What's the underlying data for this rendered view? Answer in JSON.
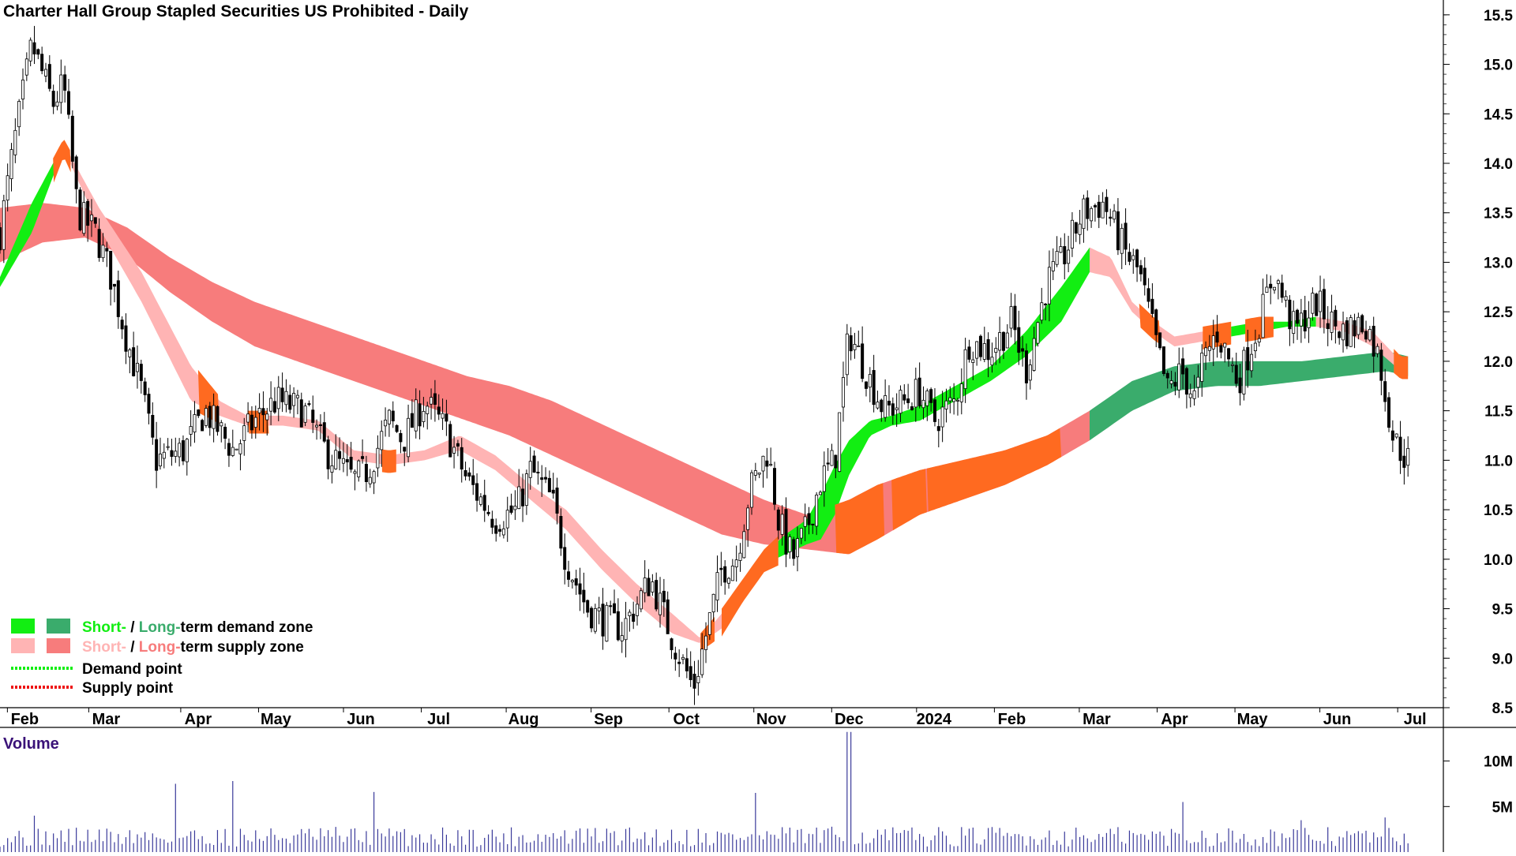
{
  "chart_data": {
    "type": "candlestick",
    "title": "Charter Hall Group Stapled Securities US Prohibited - Daily",
    "price_axis": {
      "ticks": [
        "15.5",
        "15.0",
        "14.5",
        "14.0",
        "13.5",
        "13.0",
        "12.5",
        "12.0",
        "11.5",
        "11.0",
        "10.5",
        "10.0",
        "9.5",
        "9.0",
        "8.5"
      ],
      "range": [
        8.5,
        15.65
      ]
    },
    "x_axis": {
      "labels": [
        "Feb",
        "Mar",
        "Apr",
        "May",
        "Jun",
        "Jul",
        "Aug",
        "Sep",
        "Oct",
        "Nov",
        "Dec",
        "2024",
        "Feb",
        "Mar",
        "Apr",
        "May",
        "Jun",
        "Jul"
      ],
      "label_positions": [
        0.035,
        0.15,
        0.28,
        0.39,
        0.51,
        0.62,
        0.74,
        0.86,
        0.97,
        1.09,
        1.2,
        1.32,
        1.43,
        1.55,
        1.66,
        1.77,
        1.89,
        2.0
      ]
    },
    "price_anchors": {
      "x": [
        0.0,
        0.02,
        0.045,
        0.075,
        0.09,
        0.11,
        0.135,
        0.155,
        0.18,
        0.2,
        0.22,
        0.26,
        0.29,
        0.31,
        0.33,
        0.36,
        0.39,
        0.43,
        0.46,
        0.5,
        0.52,
        0.55,
        0.57,
        0.6,
        0.63,
        0.66,
        0.7,
        0.73,
        0.75,
        0.78,
        0.8,
        0.83,
        0.85,
        0.88,
        0.92,
        0.95,
        0.98,
        1.0,
        1.02,
        1.04,
        1.06,
        1.085,
        1.1,
        1.12,
        1.14,
        1.16,
        1.18,
        1.2,
        1.23,
        1.25,
        1.28,
        1.3,
        1.32,
        1.35,
        1.37,
        1.4,
        1.43,
        1.45,
        1.48,
        1.5,
        1.53,
        1.56,
        1.59,
        1.61,
        1.63,
        1.65,
        1.67,
        1.69,
        1.7,
        1.72,
        1.75,
        1.78,
        1.8,
        1.83,
        1.86,
        1.88,
        1.9,
        1.93,
        1.95,
        1.97,
        1.99
      ],
      "close": [
        13.3,
        14.2,
        15.2,
        14.6,
        14.8,
        13.5,
        13.3,
        12.9,
        12.2,
        11.7,
        11.0,
        11.1,
        11.5,
        11.3,
        11.1,
        11.4,
        11.6,
        11.5,
        11.1,
        10.8,
        10.9,
        11.4,
        11.2,
        11.6,
        11.3,
        10.8,
        10.4,
        10.5,
        10.9,
        10.6,
        10.0,
        9.5,
        9.4,
        9.3,
        9.8,
        9.2,
        8.7,
        9.3,
        9.9,
        10.0,
        10.7,
        11.1,
        10.4,
        10.0,
        10.3,
        10.8,
        11.0,
        12.3,
        11.8,
        11.5,
        11.6,
        11.7,
        11.4,
        11.6,
        12.2,
        12.1,
        12.4,
        11.9,
        12.8,
        13.0,
        13.5,
        13.6,
        13.1,
        12.9,
        12.3,
        11.7,
        11.9,
        11.6,
        12.0,
        12.3,
        11.8,
        12.4,
        12.9,
        12.3,
        12.6,
        12.4,
        12.3,
        12.4,
        12.0,
        11.2,
        11.0
      ]
    },
    "zones": {
      "short_term": {
        "x": [
          0.0,
          0.045,
          0.09,
          0.14,
          0.2,
          0.27,
          0.31,
          0.35,
          0.4,
          0.45,
          0.5,
          0.55,
          0.6,
          0.65,
          0.7,
          0.75,
          0.8,
          0.85,
          0.9,
          0.95,
          0.99,
          1.02,
          1.05,
          1.08,
          1.11,
          1.14,
          1.16,
          1.18,
          1.2,
          1.23,
          1.26,
          1.3,
          1.35,
          1.4,
          1.45,
          1.5,
          1.54,
          1.57,
          1.6,
          1.63,
          1.66,
          1.7,
          1.74,
          1.78,
          1.82,
          1.86,
          1.9,
          1.94,
          1.98
        ],
        "upper": [
          12.85,
          13.6,
          14.2,
          13.55,
          12.9,
          11.95,
          11.6,
          11.45,
          11.45,
          11.4,
          11.1,
          11.05,
          11.1,
          11.25,
          11.05,
          10.75,
          10.5,
          10.1,
          9.75,
          9.45,
          9.2,
          9.45,
          9.75,
          10.05,
          10.25,
          10.4,
          10.65,
          10.95,
          11.2,
          11.4,
          11.45,
          11.55,
          11.75,
          11.95,
          12.3,
          12.75,
          13.15,
          13.05,
          12.6,
          12.4,
          12.25,
          12.3,
          12.35,
          12.4,
          12.4,
          12.45,
          12.4,
          12.3,
          12.0
        ],
        "lower": [
          12.75,
          13.3,
          14.15,
          13.35,
          12.6,
          11.6,
          11.45,
          11.35,
          11.35,
          11.3,
          11.0,
          10.95,
          11.0,
          11.1,
          10.9,
          10.6,
          10.3,
          9.9,
          9.55,
          9.25,
          9.15,
          9.3,
          9.65,
          9.95,
          10.05,
          10.15,
          10.2,
          10.45,
          10.85,
          11.25,
          11.35,
          11.4,
          11.6,
          11.8,
          12.05,
          12.4,
          12.9,
          12.85,
          12.5,
          12.3,
          12.15,
          12.2,
          12.25,
          12.3,
          12.35,
          12.35,
          12.3,
          12.15,
          11.9
        ],
        "state": [
          "demand",
          "demand",
          "supply",
          "supply",
          "supply",
          "supply",
          "supply",
          "supply",
          "supply",
          "supply",
          "supply",
          "supply",
          "supply",
          "supply",
          "supply",
          "supply",
          "supply",
          "supply",
          "supply",
          "supply",
          "supply",
          "supply",
          "demand",
          "demand",
          "demand",
          "demand",
          "demand",
          "demand",
          "demand",
          "demand",
          "demand",
          "demand",
          "demand",
          "demand",
          "demand",
          "demand",
          "supply",
          "supply",
          "supply",
          "supply",
          "supply",
          "supply",
          "demand",
          "demand",
          "demand",
          "supply",
          "supply",
          "supply",
          "supply"
        ]
      },
      "long_term": {
        "x": [
          0.0,
          0.06,
          0.12,
          0.18,
          0.24,
          0.3,
          0.36,
          0.42,
          0.48,
          0.54,
          0.6,
          0.66,
          0.72,
          0.78,
          0.84,
          0.9,
          0.96,
          1.02,
          1.08,
          1.14,
          1.2,
          1.24,
          1.3,
          1.36,
          1.42,
          1.48,
          1.54,
          1.6,
          1.66,
          1.72,
          1.78,
          1.84,
          1.9,
          1.96,
          1.99
        ],
        "upper": [
          13.55,
          13.6,
          13.55,
          13.35,
          13.05,
          12.8,
          12.6,
          12.45,
          12.3,
          12.15,
          12.0,
          11.85,
          11.75,
          11.6,
          11.4,
          11.2,
          11.0,
          10.8,
          10.6,
          10.45,
          10.6,
          10.75,
          10.9,
          11.0,
          11.1,
          11.25,
          11.5,
          11.8,
          11.95,
          12.0,
          12.0,
          12.0,
          12.05,
          12.1,
          12.05
        ],
        "lower": [
          13.0,
          13.2,
          13.25,
          13.05,
          12.7,
          12.4,
          12.15,
          12.0,
          11.85,
          11.7,
          11.55,
          11.4,
          11.25,
          11.05,
          10.85,
          10.65,
          10.45,
          10.25,
          10.15,
          10.1,
          10.05,
          10.2,
          10.45,
          10.6,
          10.75,
          10.95,
          11.2,
          11.5,
          11.7,
          11.75,
          11.75,
          11.8,
          11.85,
          11.9,
          11.85
        ],
        "state": [
          "supply",
          "supply",
          "supply",
          "supply",
          "supply",
          "supply",
          "supply",
          "supply",
          "supply",
          "supply",
          "supply",
          "supply",
          "supply",
          "supply",
          "supply",
          "supply",
          "supply",
          "supply",
          "supply",
          "supply",
          "supply",
          "supply",
          "supply",
          "supply",
          "supply",
          "supply",
          "demand",
          "demand",
          "demand",
          "demand",
          "demand",
          "demand",
          "demand",
          "demand",
          "supply"
        ]
      }
    },
    "volume_axis": {
      "ticks": [
        "10M",
        "5M"
      ],
      "tick_values": [
        10,
        5
      ],
      "unit": "M",
      "max": 13,
      "spikes": [
        [
          0.05,
          4.0
        ],
        [
          0.25,
          7.5
        ],
        [
          0.33,
          7.8
        ],
        [
          0.53,
          6.6
        ],
        [
          1.07,
          6.5
        ],
        [
          1.2,
          13.2
        ],
        [
          1.67,
          5.5
        ],
        [
          1.84,
          3.5
        ],
        [
          1.96,
          3.8
        ]
      ]
    },
    "volume_title": "Volume",
    "legend": [
      {
        "text_a": "Short-",
        "text_b": " / ",
        "text_c": "Long-",
        "text_d": "term demand zone",
        "colors": [
          "#12ee12",
          "#3aac6c"
        ],
        "text_colors": [
          "#12ee12",
          "#000000",
          "#3aac6c",
          "#000000"
        ]
      },
      {
        "text_a": "Short-",
        "text_b": " / ",
        "text_c": "Long-",
        "text_d": "term supply zone",
        "colors": [
          "#ffb4b4",
          "#f77c7c"
        ],
        "text_colors": [
          "#ffb4b4",
          "#000000",
          "#f77c7c",
          "#000000"
        ]
      }
    ],
    "legend_points": [
      {
        "label": "Demand point",
        "color": "#12ee12"
      },
      {
        "label": "Supply point",
        "color": "#ee1212"
      }
    ],
    "colors": {
      "short_demand": "#12ee12",
      "long_demand": "#3aac6c",
      "short_supply": "#ffb4b4",
      "long_supply": "#f77c7c",
      "neutral_zone": "#ff6a20",
      "volume_bar": "#3a3a9a",
      "candle": "#000000"
    }
  }
}
